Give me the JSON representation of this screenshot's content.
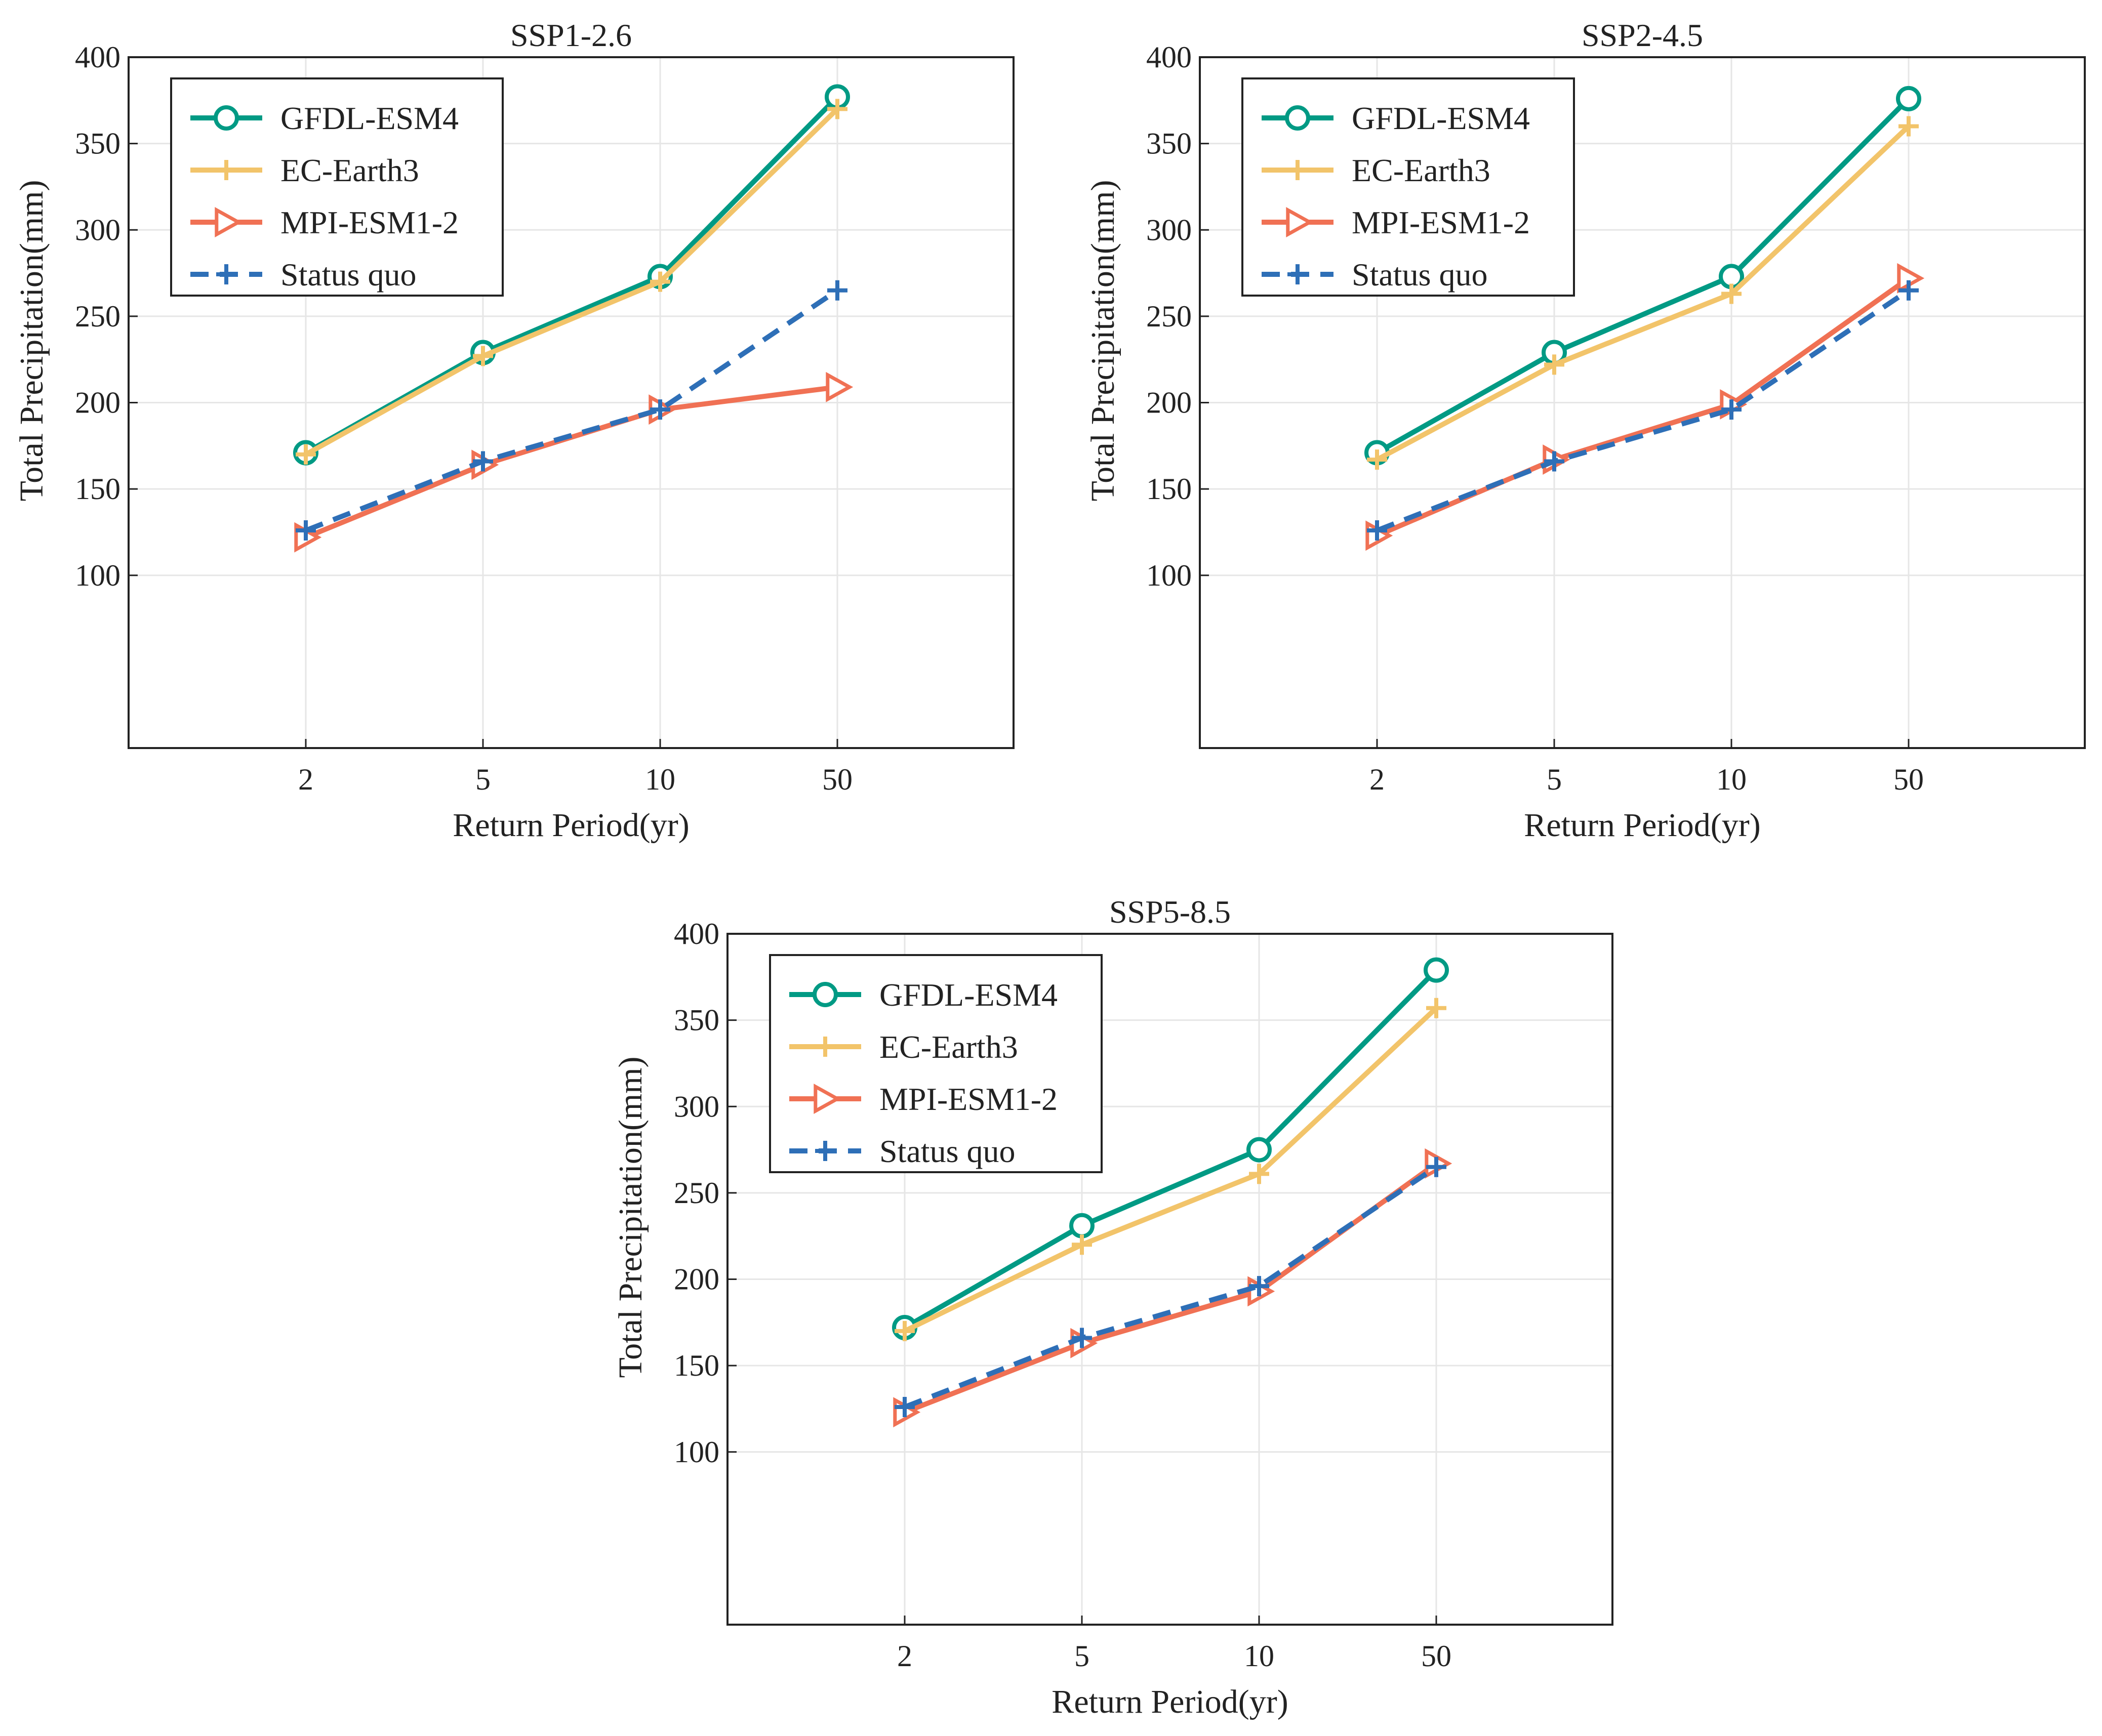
{
  "chart_data": [
    {
      "type": "line",
      "title": "SSP1-2.6",
      "xlabel": "Return Period(yr)",
      "ylabel": "Total Precipitation(mm)",
      "categories": [
        "2",
        "5",
        "10",
        "50"
      ],
      "yticks": [
        100,
        150,
        200,
        250,
        300,
        350,
        400
      ],
      "ylim": [
        0,
        400
      ],
      "grid": true,
      "legend": "top-left",
      "series": [
        {
          "name": "GFDL-ESM4",
          "values": [
            171,
            229,
            273,
            377
          ],
          "color": "#009a84",
          "marker": "circle",
          "dash": "solid"
        },
        {
          "name": "EC-Earth3",
          "values": [
            170,
            227,
            270,
            370
          ],
          "color": "#f2c46a",
          "marker": "plus",
          "dash": "solid"
        },
        {
          "name": "MPI-ESM1-2",
          "values": [
            122,
            164,
            196,
            209
          ],
          "color": "#f07154",
          "marker": "triangle-right",
          "dash": "solid"
        },
        {
          "name": "Status quo",
          "values": [
            126,
            166,
            196,
            265
          ],
          "color": "#2e6fb7",
          "marker": "plus",
          "dash": "dashed"
        }
      ]
    },
    {
      "type": "line",
      "title": "SSP2-4.5",
      "xlabel": "Return Period(yr)",
      "ylabel": "Total Precipitation(mm)",
      "categories": [
        "2",
        "5",
        "10",
        "50"
      ],
      "yticks": [
        100,
        150,
        200,
        250,
        300,
        350,
        400
      ],
      "ylim": [
        0,
        400
      ],
      "grid": true,
      "legend": "top-left",
      "series": [
        {
          "name": "GFDL-ESM4",
          "values": [
            171,
            229,
            273,
            376
          ],
          "color": "#009a84",
          "marker": "circle",
          "dash": "solid"
        },
        {
          "name": "EC-Earth3",
          "values": [
            167,
            222,
            263,
            360
          ],
          "color": "#f2c46a",
          "marker": "plus",
          "dash": "solid"
        },
        {
          "name": "MPI-ESM1-2",
          "values": [
            123,
            167,
            199,
            272
          ],
          "color": "#f07154",
          "marker": "triangle-right",
          "dash": "solid"
        },
        {
          "name": "Status quo",
          "values": [
            126,
            166,
            196,
            265
          ],
          "color": "#2e6fb7",
          "marker": "plus",
          "dash": "dashed"
        }
      ]
    },
    {
      "type": "line",
      "title": "SSP5-8.5",
      "xlabel": "Return Period(yr)",
      "ylabel": "Total Precipitation(mm)",
      "categories": [
        "2",
        "5",
        "10",
        "50"
      ],
      "yticks": [
        100,
        150,
        200,
        250,
        300,
        350,
        400
      ],
      "ylim": [
        0,
        400
      ],
      "grid": true,
      "legend": "top-left",
      "series": [
        {
          "name": "GFDL-ESM4",
          "values": [
            172,
            231,
            275,
            379
          ],
          "color": "#009a84",
          "marker": "circle",
          "dash": "solid"
        },
        {
          "name": "EC-Earth3",
          "values": [
            170,
            220,
            261,
            357
          ],
          "color": "#f2c46a",
          "marker": "plus",
          "dash": "solid"
        },
        {
          "name": "MPI-ESM1-2",
          "values": [
            123,
            163,
            193,
            267
          ],
          "color": "#f07154",
          "marker": "triangle-right",
          "dash": "solid"
        },
        {
          "name": "Status quo",
          "values": [
            126,
            166,
            196,
            265
          ],
          "color": "#2e6fb7",
          "marker": "plus",
          "dash": "dashed"
        }
      ]
    }
  ]
}
